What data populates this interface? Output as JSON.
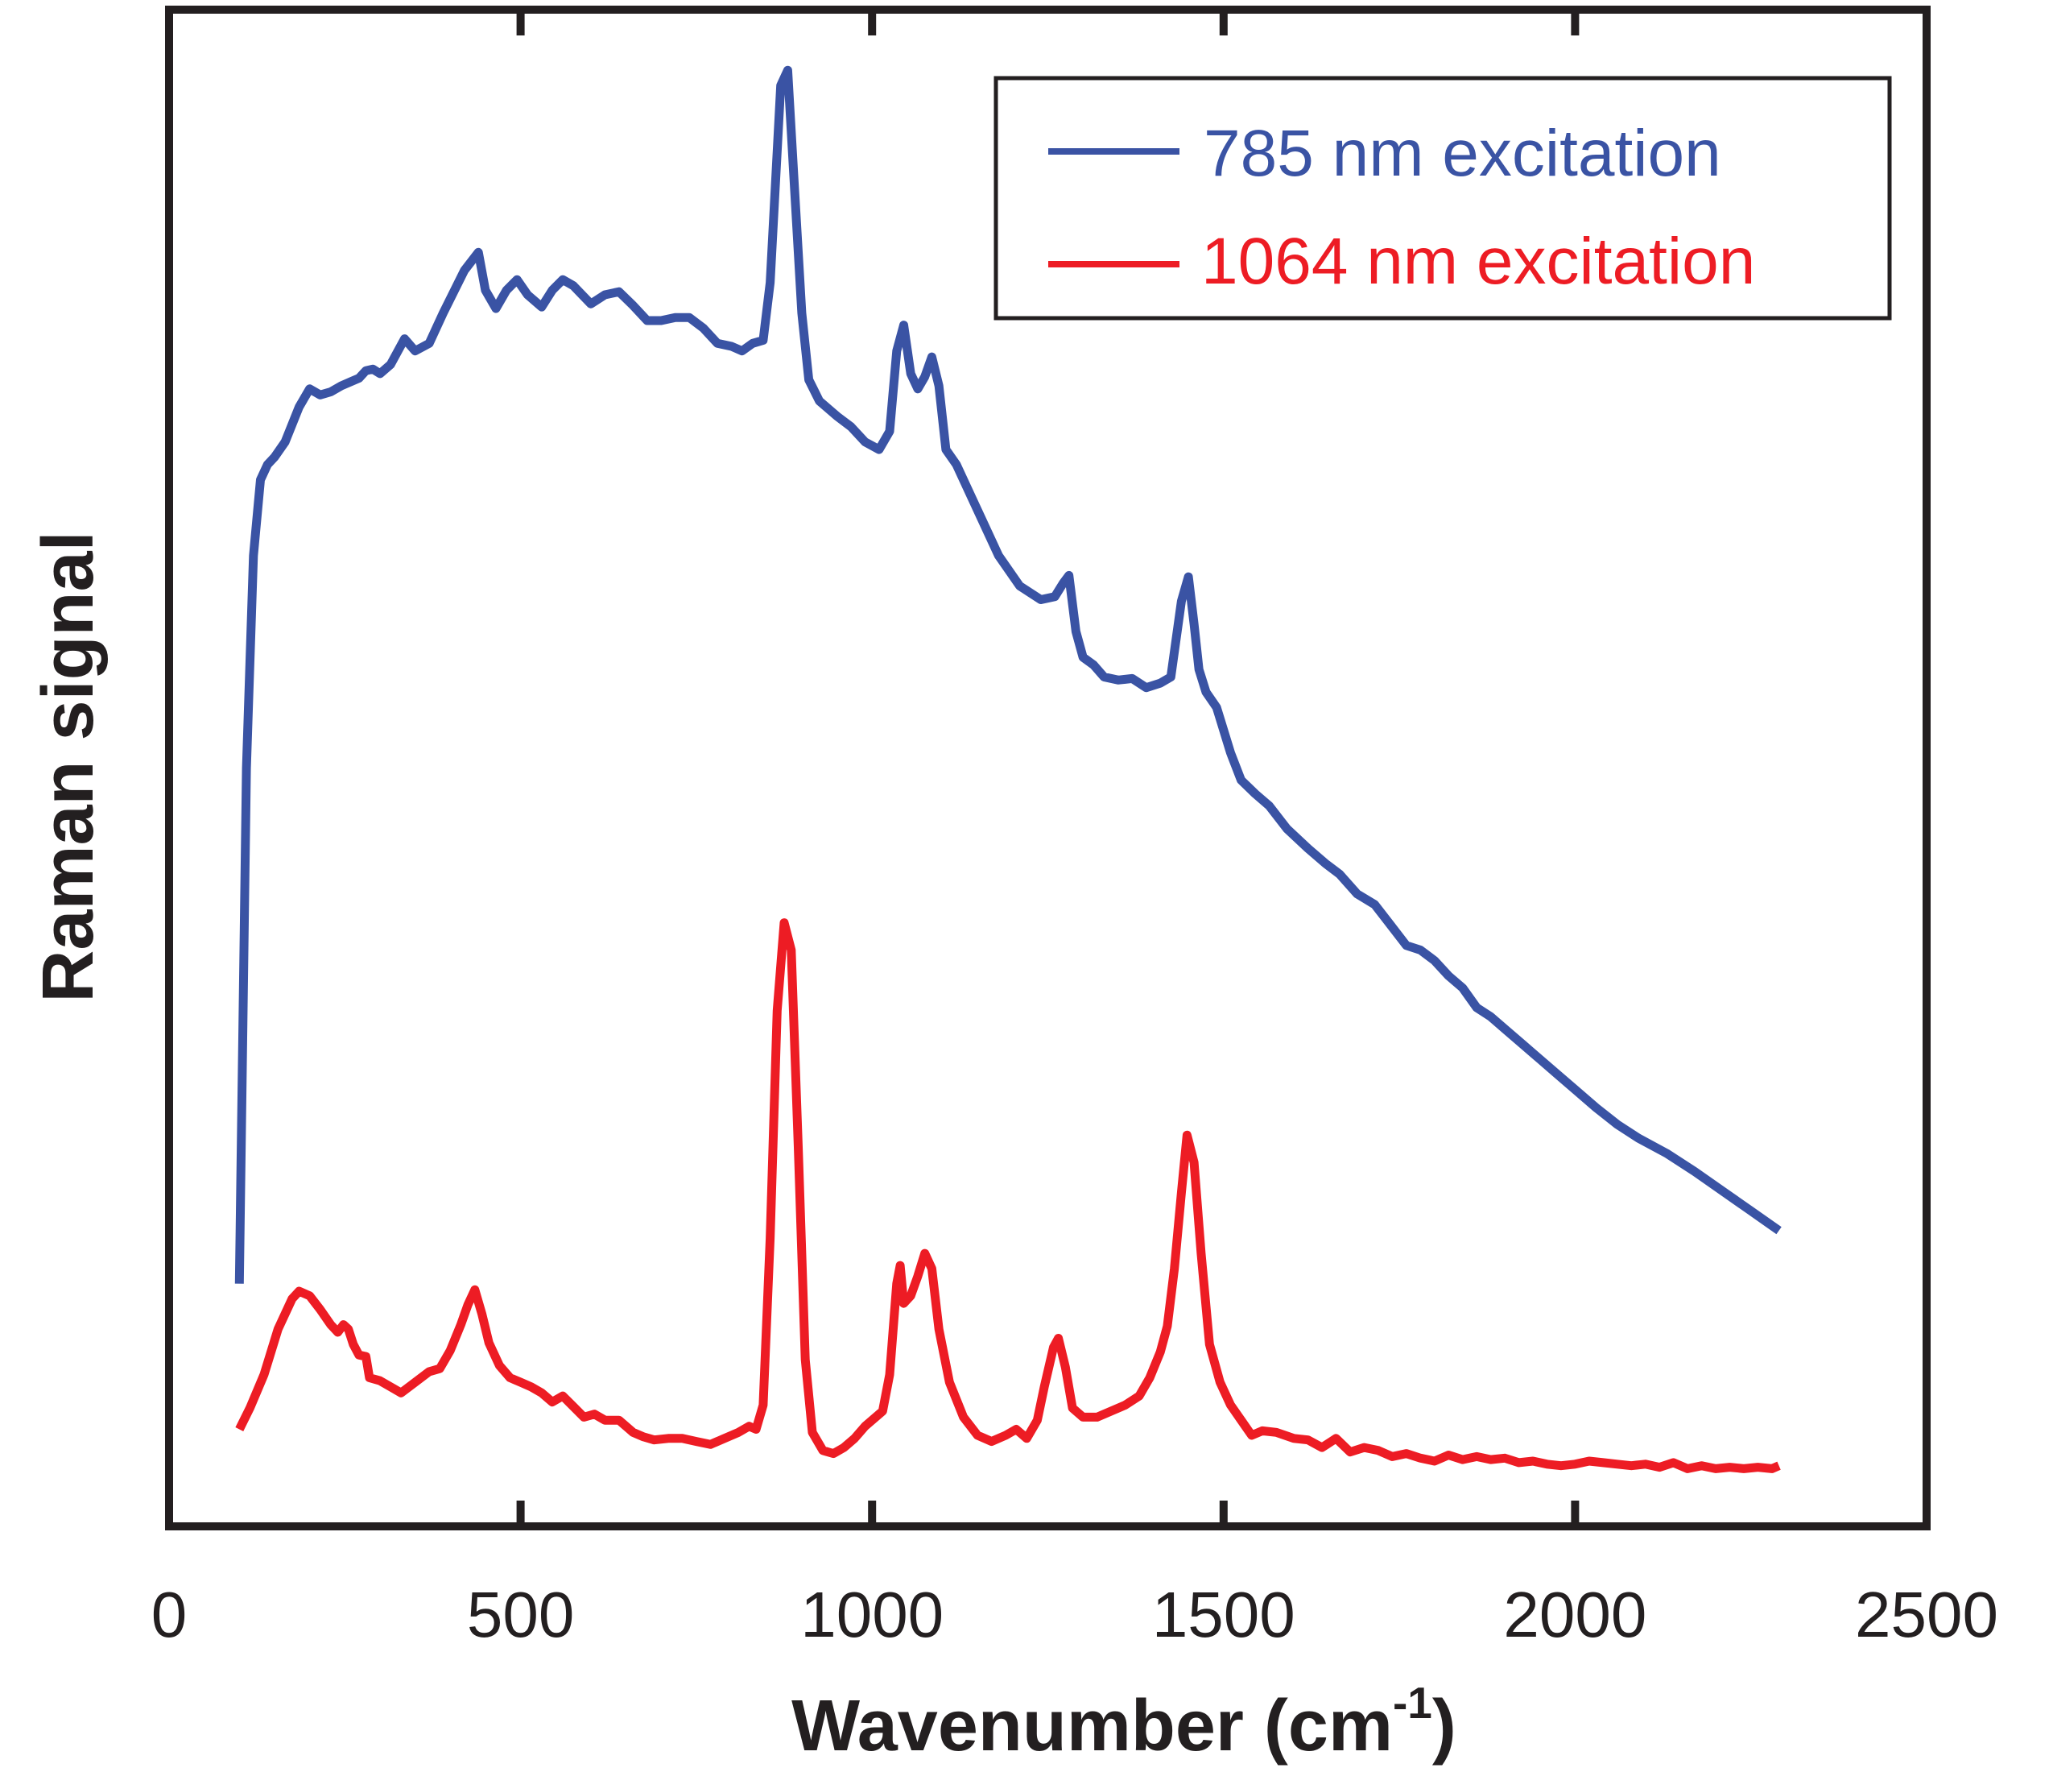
{
  "chart_data": {
    "type": "line",
    "title": "",
    "xlabel": "Wavenumber (cm",
    "xlabel_sup": "-1",
    "xlabel_end": ")",
    "ylabel": "Raman signal",
    "xlim": [
      0,
      2500
    ],
    "ylim": [
      0,
      1000
    ],
    "xticks": [
      0,
      500,
      1000,
      1500,
      2000,
      2500
    ],
    "xtick_labels": [
      "0",
      "500",
      "1000",
      "1500",
      "2000",
      "2500"
    ],
    "yticks_visible": false,
    "grid": false,
    "legend_position": "top-right",
    "series": [
      {
        "name": "785 nm excitation",
        "color": "#3a53a4",
        "points": [
          [
            100,
            160
          ],
          [
            110,
            500
          ],
          [
            120,
            640
          ],
          [
            130,
            690
          ],
          [
            140,
            700
          ],
          [
            150,
            705
          ],
          [
            165,
            715
          ],
          [
            185,
            738
          ],
          [
            200,
            750
          ],
          [
            215,
            746
          ],
          [
            230,
            748
          ],
          [
            245,
            752
          ],
          [
            260,
            755
          ],
          [
            270,
            757
          ],
          [
            280,
            762
          ],
          [
            290,
            763
          ],
          [
            300,
            760
          ],
          [
            315,
            766
          ],
          [
            335,
            783
          ],
          [
            350,
            775
          ],
          [
            370,
            780
          ],
          [
            390,
            800
          ],
          [
            420,
            828
          ],
          [
            440,
            840
          ],
          [
            450,
            815
          ],
          [
            465,
            803
          ],
          [
            480,
            815
          ],
          [
            495,
            822
          ],
          [
            510,
            812
          ],
          [
            530,
            804
          ],
          [
            545,
            815
          ],
          [
            560,
            822
          ],
          [
            575,
            818
          ],
          [
            600,
            806
          ],
          [
            620,
            812
          ],
          [
            640,
            814
          ],
          [
            660,
            805
          ],
          [
            680,
            795
          ],
          [
            700,
            795
          ],
          [
            720,
            797
          ],
          [
            740,
            797
          ],
          [
            760,
            790
          ],
          [
            780,
            780
          ],
          [
            800,
            778
          ],
          [
            815,
            775
          ],
          [
            830,
            780
          ],
          [
            845,
            782
          ],
          [
            855,
            820
          ],
          [
            870,
            950
          ],
          [
            880,
            960
          ],
          [
            890,
            880
          ],
          [
            900,
            800
          ],
          [
            910,
            756
          ],
          [
            925,
            742
          ],
          [
            950,
            732
          ],
          [
            970,
            725
          ],
          [
            990,
            715
          ],
          [
            1010,
            710
          ],
          [
            1025,
            722
          ],
          [
            1035,
            775
          ],
          [
            1045,
            792
          ],
          [
            1055,
            760
          ],
          [
            1065,
            750
          ],
          [
            1075,
            758
          ],
          [
            1085,
            771
          ],
          [
            1095,
            752
          ],
          [
            1105,
            710
          ],
          [
            1120,
            700
          ],
          [
            1150,
            670
          ],
          [
            1180,
            640
          ],
          [
            1210,
            620
          ],
          [
            1240,
            611
          ],
          [
            1260,
            613
          ],
          [
            1272,
            622
          ],
          [
            1280,
            627
          ],
          [
            1290,
            590
          ],
          [
            1300,
            573
          ],
          [
            1315,
            568
          ],
          [
            1330,
            560
          ],
          [
            1350,
            558
          ],
          [
            1370,
            559
          ],
          [
            1390,
            553
          ],
          [
            1410,
            556
          ],
          [
            1425,
            560
          ],
          [
            1440,
            610
          ],
          [
            1450,
            626
          ],
          [
            1458,
            595
          ],
          [
            1465,
            565
          ],
          [
            1475,
            550
          ],
          [
            1490,
            540
          ],
          [
            1510,
            510
          ],
          [
            1525,
            492
          ],
          [
            1545,
            483
          ],
          [
            1565,
            475
          ],
          [
            1590,
            460
          ],
          [
            1620,
            447
          ],
          [
            1645,
            437
          ],
          [
            1665,
            430
          ],
          [
            1690,
            417
          ],
          [
            1715,
            410
          ],
          [
            1740,
            395
          ],
          [
            1760,
            383
          ],
          [
            1780,
            380
          ],
          [
            1800,
            373
          ],
          [
            1820,
            363
          ],
          [
            1840,
            355
          ],
          [
            1860,
            342
          ],
          [
            1880,
            336
          ],
          [
            1900,
            328
          ],
          [
            1925,
            318
          ],
          [
            1950,
            308
          ],
          [
            1975,
            298
          ],
          [
            2000,
            288
          ],
          [
            2030,
            276
          ],
          [
            2060,
            265
          ],
          [
            2090,
            256
          ],
          [
            2130,
            246
          ],
          [
            2170,
            234
          ],
          [
            2210,
            221
          ],
          [
            2250,
            208
          ],
          [
            2290,
            195
          ]
        ]
      },
      {
        "name": "1064 nm excitation",
        "color": "#ed1c24",
        "points": [
          [
            100,
            64
          ],
          [
            115,
            78
          ],
          [
            135,
            100
          ],
          [
            155,
            130
          ],
          [
            175,
            150
          ],
          [
            185,
            155
          ],
          [
            200,
            152
          ],
          [
            215,
            143
          ],
          [
            230,
            133
          ],
          [
            240,
            128
          ],
          [
            248,
            133
          ],
          [
            255,
            130
          ],
          [
            262,
            120
          ],
          [
            270,
            113
          ],
          [
            280,
            112
          ],
          [
            285,
            98
          ],
          [
            300,
            96
          ],
          [
            315,
            92
          ],
          [
            330,
            88
          ],
          [
            350,
            95
          ],
          [
            370,
            102
          ],
          [
            385,
            104
          ],
          [
            400,
            116
          ],
          [
            415,
            133
          ],
          [
            425,
            146
          ],
          [
            435,
            156
          ],
          [
            445,
            140
          ],
          [
            455,
            121
          ],
          [
            470,
            106
          ],
          [
            485,
            98
          ],
          [
            500,
            95
          ],
          [
            515,
            92
          ],
          [
            530,
            88
          ],
          [
            545,
            82
          ],
          [
            560,
            86
          ],
          [
            575,
            79
          ],
          [
            590,
            72
          ],
          [
            605,
            74
          ],
          [
            620,
            70
          ],
          [
            640,
            70
          ],
          [
            660,
            62
          ],
          [
            675,
            59
          ],
          [
            690,
            57
          ],
          [
            710,
            58
          ],
          [
            730,
            58
          ],
          [
            750,
            56
          ],
          [
            770,
            54
          ],
          [
            790,
            58
          ],
          [
            810,
            62
          ],
          [
            825,
            66
          ],
          [
            835,
            64
          ],
          [
            845,
            80
          ],
          [
            855,
            190
          ],
          [
            865,
            340
          ],
          [
            875,
            398
          ],
          [
            885,
            380
          ],
          [
            895,
            250
          ],
          [
            905,
            110
          ],
          [
            915,
            62
          ],
          [
            930,
            50
          ],
          [
            945,
            48
          ],
          [
            960,
            52
          ],
          [
            975,
            58
          ],
          [
            990,
            66
          ],
          [
            1005,
            72
          ],
          [
            1015,
            76
          ],
          [
            1025,
            100
          ],
          [
            1035,
            160
          ],
          [
            1040,
            172
          ],
          [
            1045,
            147
          ],
          [
            1055,
            152
          ],
          [
            1065,
            165
          ],
          [
            1075,
            180
          ],
          [
            1085,
            170
          ],
          [
            1095,
            130
          ],
          [
            1110,
            95
          ],
          [
            1130,
            72
          ],
          [
            1150,
            60
          ],
          [
            1170,
            56
          ],
          [
            1190,
            60
          ],
          [
            1205,
            64
          ],
          [
            1220,
            58
          ],
          [
            1235,
            70
          ],
          [
            1245,
            92
          ],
          [
            1258,
            118
          ],
          [
            1265,
            124
          ],
          [
            1275,
            105
          ],
          [
            1285,
            78
          ],
          [
            1300,
            72
          ],
          [
            1320,
            72
          ],
          [
            1340,
            76
          ],
          [
            1360,
            80
          ],
          [
            1380,
            86
          ],
          [
            1395,
            98
          ],
          [
            1410,
            115
          ],
          [
            1420,
            132
          ],
          [
            1430,
            170
          ],
          [
            1440,
            220
          ],
          [
            1448,
            258
          ],
          [
            1458,
            240
          ],
          [
            1468,
            180
          ],
          [
            1480,
            120
          ],
          [
            1495,
            95
          ],
          [
            1510,
            80
          ],
          [
            1525,
            70
          ],
          [
            1540,
            60
          ],
          [
            1555,
            63
          ],
          [
            1575,
            62
          ],
          [
            1600,
            58
          ],
          [
            1620,
            57
          ],
          [
            1640,
            52
          ],
          [
            1660,
            58
          ],
          [
            1680,
            49
          ],
          [
            1700,
            52
          ],
          [
            1720,
            50
          ],
          [
            1740,
            46
          ],
          [
            1760,
            48
          ],
          [
            1780,
            45
          ],
          [
            1800,
            43
          ],
          [
            1820,
            47
          ],
          [
            1840,
            44
          ],
          [
            1860,
            46
          ],
          [
            1880,
            44
          ],
          [
            1900,
            45
          ],
          [
            1920,
            42
          ],
          [
            1940,
            43
          ],
          [
            1960,
            41
          ],
          [
            1980,
            40
          ],
          [
            2000,
            41
          ],
          [
            2020,
            43
          ],
          [
            2040,
            42
          ],
          [
            2060,
            41
          ],
          [
            2080,
            40
          ],
          [
            2100,
            41
          ],
          [
            2120,
            39
          ],
          [
            2140,
            42
          ],
          [
            2160,
            38
          ],
          [
            2180,
            40
          ],
          [
            2200,
            38
          ],
          [
            2220,
            39
          ],
          [
            2240,
            38
          ],
          [
            2260,
            39
          ],
          [
            2280,
            38
          ],
          [
            2290,
            40
          ]
        ]
      }
    ]
  }
}
